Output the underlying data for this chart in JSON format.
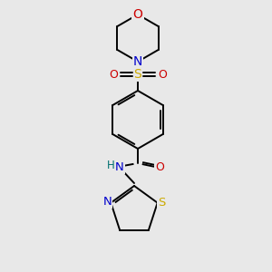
{
  "background_color": "#e8e8e8",
  "atom_colors": {
    "C": "#000000",
    "N": "#0000cc",
    "O": "#cc0000",
    "S": "#ccaa00",
    "H": "#007070"
  },
  "bond_color": "#000000",
  "figsize": [
    3.0,
    3.0
  ],
  "dpi": 100
}
